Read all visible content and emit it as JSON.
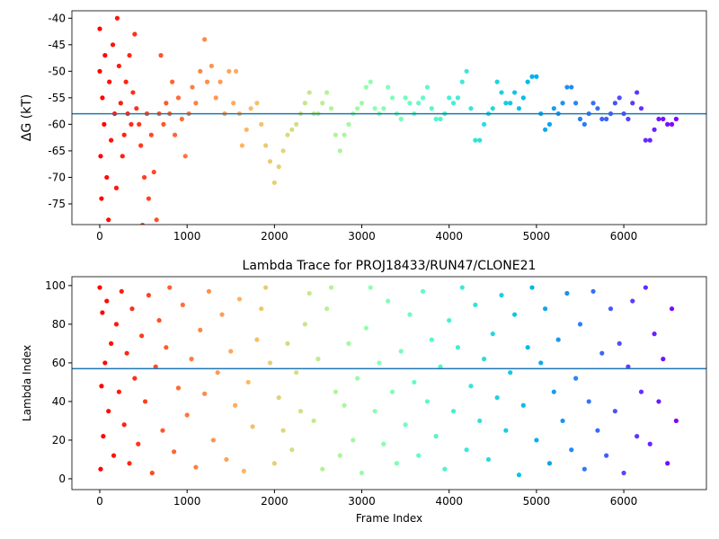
{
  "chart_data": [
    {
      "type": "scatter",
      "ylabel": "ΔG (kT)",
      "colormap": "rainbow_r",
      "hline": -58,
      "hline_color": "#1f77b4",
      "xlim": [
        -319,
        6946
      ],
      "ylim": [
        -78.9,
        -38.6
      ],
      "xticks": [
        0,
        1000,
        2000,
        3000,
        4000,
        5000,
        6000
      ],
      "yticks": [
        -75,
        -70,
        -65,
        -60,
        -55,
        -50,
        -45,
        -40
      ],
      "x": [
        0,
        0,
        10,
        20,
        30,
        50,
        60,
        80,
        100,
        110,
        130,
        150,
        170,
        190,
        200,
        220,
        240,
        260,
        280,
        300,
        320,
        340,
        360,
        380,
        400,
        420,
        450,
        470,
        490,
        510,
        540,
        560,
        590,
        620,
        650,
        680,
        700,
        730,
        760,
        800,
        830,
        860,
        900,
        940,
        980,
        1020,
        1060,
        1100,
        1150,
        1200,
        1230,
        1280,
        1330,
        1380,
        1430,
        1480,
        1530,
        1560,
        1600,
        1630,
        1680,
        1730,
        1800,
        1850,
        1900,
        1950,
        2000,
        2050,
        2100,
        2150,
        2200,
        2250,
        2300,
        2350,
        2400,
        2450,
        2500,
        2550,
        2600,
        2650,
        2700,
        2750,
        2800,
        2850,
        2900,
        2950,
        3000,
        3050,
        3100,
        3150,
        3200,
        3250,
        3300,
        3350,
        3400,
        3450,
        3500,
        3550,
        3600,
        3650,
        3700,
        3750,
        3800,
        3850,
        3900,
        3950,
        4000,
        4050,
        4100,
        4150,
        4200,
        4250,
        4300,
        4350,
        4400,
        4450,
        4500,
        4550,
        4600,
        4650,
        4700,
        4750,
        4800,
        4850,
        4900,
        4950,
        5000,
        5050,
        5100,
        5150,
        5200,
        5250,
        5300,
        5350,
        5400,
        5450,
        5500,
        5550,
        5600,
        5650,
        5700,
        5750,
        5800,
        5850,
        5900,
        5950,
        6000,
        6050,
        6100,
        6150,
        6200,
        6250,
        6300,
        6350,
        6400,
        6450,
        6500,
        6550,
        6600
      ],
      "y": [
        -42,
        -50,
        -66,
        -74,
        -55,
        -60,
        -47,
        -70,
        -78,
        -52,
        -63,
        -45,
        -58,
        -72,
        -40,
        -49,
        -56,
        -66,
        -62,
        -52,
        -58,
        -47,
        -60,
        -54,
        -43,
        -57,
        -60,
        -64,
        -79,
        -70,
        -58,
        -74,
        -62,
        -69,
        -78,
        -58,
        -47,
        -60,
        -56,
        -58,
        -52,
        -62,
        -55,
        -59,
        -66,
        -58,
        -53,
        -56,
        -50,
        -44,
        -52,
        -49,
        -55,
        -52,
        -58,
        -50,
        -56,
        -50,
        -58,
        -64,
        -61,
        -57,
        -56,
        -60,
        -64,
        -67,
        -71,
        -68,
        -65,
        -62,
        -61,
        -60,
        -58,
        -56,
        -54,
        -58,
        -58,
        -56,
        -54,
        -57,
        -62,
        -65,
        -62,
        -60,
        -58,
        -57,
        -56,
        -53,
        -52,
        -57,
        -58,
        -57,
        -53,
        -55,
        -58,
        -59,
        -55,
        -56,
        -58,
        -56,
        -55,
        -53,
        -57,
        -59,
        -59,
        -58,
        -55,
        -56,
        -55,
        -52,
        -50,
        -57,
        -63,
        -63,
        -60,
        -58,
        -57,
        -52,
        -54,
        -56,
        -56,
        -54,
        -57,
        -55,
        -52,
        -51,
        -51,
        -58,
        -61,
        -60,
        -57,
        -58,
        -56,
        -53,
        -53,
        -56,
        -59,
        -60,
        -58,
        -56,
        -57,
        -59,
        -59,
        -58,
        -56,
        -55,
        -58,
        -59,
        -56,
        -54,
        -57,
        -63,
        -63,
        -61,
        -59,
        -59,
        -60,
        -60,
        -59
      ]
    },
    {
      "type": "scatter",
      "title": "Lambda Trace for PROJ18433/RUN47/CLONE21",
      "xlabel": "Frame Index",
      "ylabel": "Lambda Index",
      "colormap": "rainbow_r",
      "hline": 57,
      "hline_color": "#1f77b4",
      "xlim": [
        -319,
        6946
      ],
      "ylim": [
        -5.6,
        104.6
      ],
      "xticks": [
        0,
        1000,
        2000,
        3000,
        4000,
        5000,
        6000
      ],
      "yticks": [
        0,
        20,
        40,
        60,
        80,
        100
      ],
      "x": [
        0,
        10,
        20,
        30,
        40,
        60,
        80,
        100,
        130,
        160,
        190,
        220,
        250,
        280,
        310,
        340,
        370,
        400,
        440,
        480,
        520,
        560,
        600,
        640,
        680,
        720,
        760,
        800,
        850,
        900,
        950,
        1000,
        1050,
        1100,
        1150,
        1200,
        1250,
        1300,
        1350,
        1400,
        1450,
        1500,
        1550,
        1600,
        1650,
        1700,
        1750,
        1800,
        1850,
        1900,
        1950,
        2000,
        2050,
        2100,
        2150,
        2200,
        2250,
        2300,
        2350,
        2400,
        2450,
        2500,
        2550,
        2600,
        2650,
        2700,
        2750,
        2800,
        2850,
        2900,
        2950,
        3000,
        3050,
        3100,
        3150,
        3200,
        3250,
        3300,
        3350,
        3400,
        3450,
        3500,
        3550,
        3600,
        3650,
        3700,
        3750,
        3800,
        3850,
        3900,
        3950,
        4000,
        4050,
        4100,
        4150,
        4200,
        4250,
        4300,
        4350,
        4400,
        4450,
        4500,
        4550,
        4600,
        4650,
        4700,
        4750,
        4800,
        4850,
        4900,
        4950,
        5000,
        5050,
        5100,
        5150,
        5200,
        5250,
        5300,
        5350,
        5400,
        5450,
        5500,
        5550,
        5600,
        5650,
        5700,
        5750,
        5800,
        5850,
        5900,
        5950,
        6000,
        6050,
        6100,
        6150,
        6200,
        6250,
        6300,
        6350,
        6400,
        6450,
        6500,
        6550,
        6600
      ],
      "y": [
        99,
        5,
        48,
        86,
        22,
        60,
        92,
        35,
        70,
        12,
        80,
        45,
        97,
        28,
        65,
        8,
        88,
        52,
        18,
        74,
        40,
        95,
        3,
        58,
        82,
        25,
        68,
        99,
        14,
        47,
        90,
        33,
        62,
        6,
        77,
        44,
        97,
        20,
        55,
        85,
        10,
        66,
        38,
        93,
        4,
        50,
        27,
        72,
        88,
        99,
        60,
        8,
        42,
        25,
        70,
        15,
        55,
        35,
        80,
        96,
        30,
        62,
        5,
        88,
        99,
        45,
        12,
        38,
        70,
        20,
        52,
        3,
        78,
        99,
        35,
        60,
        18,
        92,
        45,
        8,
        66,
        28,
        85,
        50,
        12,
        97,
        40,
        72,
        22,
        58,
        5,
        82,
        35,
        68,
        99,
        15,
        48,
        90,
        30,
        62,
        10,
        75,
        42,
        95,
        25,
        55,
        85,
        2,
        38,
        68,
        99,
        20,
        60,
        88,
        8,
        45,
        72,
        30,
        96,
        15,
        52,
        80,
        5,
        40,
        97,
        25,
        65,
        12,
        88,
        35,
        70,
        3,
        58,
        92,
        22,
        45,
        99,
        18,
        75,
        40,
        62,
        8,
        88,
        30
      ]
    }
  ]
}
